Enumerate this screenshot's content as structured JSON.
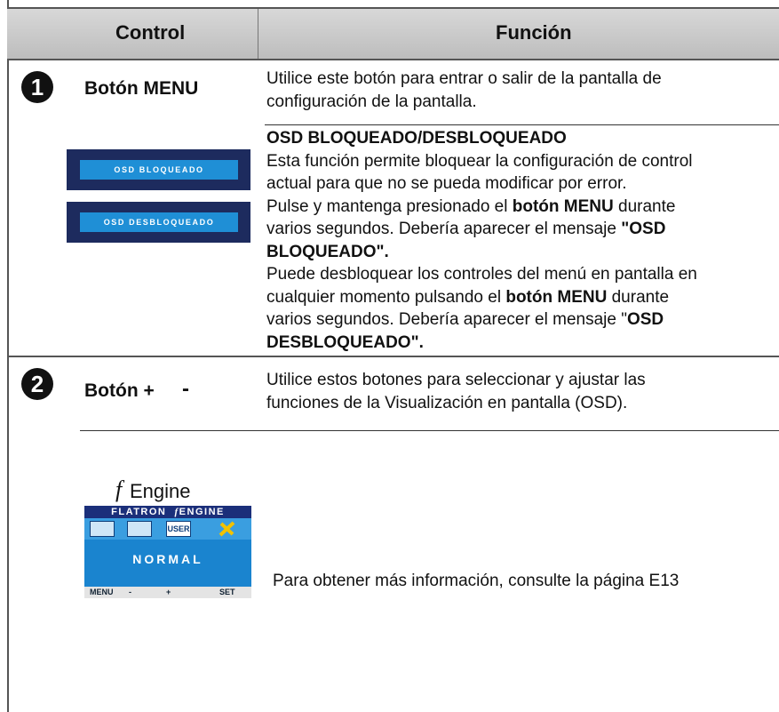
{
  "header": {
    "control": "Control",
    "function": "Función"
  },
  "row1": {
    "number": "1",
    "control": "Botón MENU",
    "description": [
      "Utilice este botón para entrar o salir de la pantalla de",
      "configuración de la pantalla."
    ]
  },
  "osd_lock": {
    "buttons": [
      "OSD BLOQUEADO",
      "OSD DESBLOQUEADO"
    ],
    "title": "OSD BLOQUEADO/DESBLOQUEADO",
    "lines": [
      [
        "Esta función permite bloquear la configuración de control"
      ],
      [
        "actual para que no se pueda modificar por error."
      ],
      [
        "Pulse y mantenga presionado el ",
        "botón MENU",
        " durante"
      ],
      [
        "varios segundos. Debería aparecer el mensaje ",
        "\"OSD"
      ],
      [
        "BLOQUEADO\"."
      ],
      [
        "Puede desbloquear los controles del menú en pantalla en"
      ],
      [
        "cualquier momento pulsando el ",
        "botón MENU",
        " durante"
      ],
      [
        "varios segundos. Debería aparecer el mensaje \"",
        "OSD"
      ],
      [
        "DESBLOQUEADO\"."
      ]
    ]
  },
  "row2": {
    "number": "2",
    "control": "Botón +",
    "control_minus": "-",
    "description": [
      "Utilice estos botones para seleccionar y ajustar las",
      "funciones de la Visualización en pantalla (OSD)."
    ]
  },
  "fengine": {
    "label_prefix": "f",
    "label": "Engine",
    "panel": {
      "brand": "FLATRON",
      "mode_prefix": "f",
      "mode_title": "ENGINE",
      "user": "USER",
      "mode": "NORMAL",
      "menu": "MENU",
      "minus": "-",
      "plus": "+",
      "set": "SET"
    },
    "note": "Para obtener más información, consulte la página E13"
  }
}
